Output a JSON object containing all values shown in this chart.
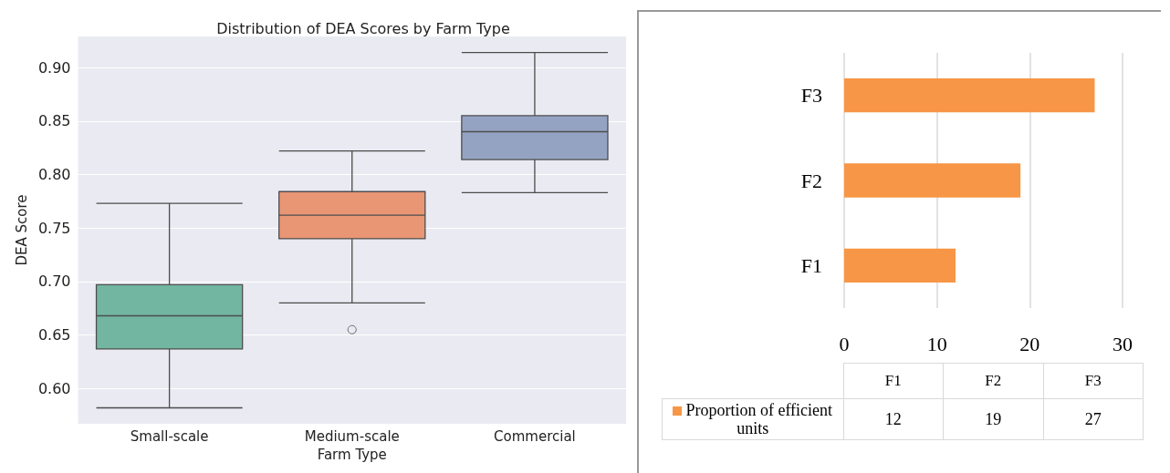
{
  "chart_data": [
    {
      "type": "box",
      "title": "Distribution of DEA Scores by Farm Type",
      "xlabel": "Farm Type",
      "ylabel": "DEA Score",
      "categories": [
        "Small-scale",
        "Medium-scale",
        "Commercial"
      ],
      "boxes": [
        {
          "low": 0.582,
          "q1": 0.637,
          "median": 0.668,
          "q3": 0.697,
          "high": 0.773
        },
        {
          "low": 0.68,
          "q1": 0.74,
          "median": 0.762,
          "q3": 0.784,
          "high": 0.822,
          "outliers": [
            0.655
          ]
        },
        {
          "low": 0.783,
          "q1": 0.814,
          "median": 0.84,
          "q3": 0.855,
          "high": 0.914
        }
      ],
      "colors": [
        "#72b6a1",
        "#e99675",
        "#95a3c3"
      ],
      "ylim": [
        0.567,
        0.929
      ],
      "yticks": [
        {
          "value": 0.6,
          "label": "0.60"
        },
        {
          "value": 0.65,
          "label": "0.65"
        },
        {
          "value": 0.7,
          "label": "0.70"
        },
        {
          "value": 0.75,
          "label": "0.75"
        },
        {
          "value": 0.8,
          "label": "0.80"
        },
        {
          "value": 0.85,
          "label": "0.85"
        },
        {
          "value": 0.9,
          "label": "0.90"
        }
      ],
      "grid": "y",
      "marker": "circle"
    },
    {
      "type": "bar",
      "orientation": "horizontal",
      "categories": [
        "F3",
        "F2",
        "F1"
      ],
      "series": [
        {
          "color": "#f79646",
          "values": [
            27,
            19,
            12
          ]
        }
      ],
      "xlim": [
        0,
        30
      ],
      "xticks": [
        0,
        10,
        20,
        30
      ],
      "grid": "x"
    },
    {
      "type": "other",
      "categories": [
        "F1",
        "F2",
        "F3"
      ],
      "series": [
        {
          "name": "Proportion of efficient units",
          "color": "#f79646",
          "values": [
            12,
            19,
            27
          ]
        }
      ],
      "legend": "left",
      "data_labels": true
    }
  ]
}
